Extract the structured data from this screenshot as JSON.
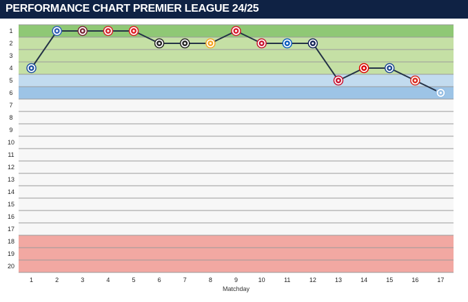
{
  "header": {
    "title": "PERFORMANCE CHART PREMIER LEAGUE 24/25"
  },
  "colors": {
    "header_bg": "#0f2244",
    "zone_top": "#8fc875",
    "zone_cl": "#c5e0a5",
    "zone_el": "#c2dbef",
    "zone_ecl": "#9dc4e6",
    "zone_mid": "#f7f7f7",
    "zone_releg": "#f2a8a2",
    "line": "#243246"
  },
  "chart_data": {
    "type": "line",
    "title": "PERFORMANCE CHART PREMIER LEAGUE 24/25",
    "xlabel": "Matchday",
    "ylabel": "",
    "x": [
      1,
      2,
      3,
      4,
      5,
      6,
      7,
      8,
      9,
      10,
      11,
      12,
      13,
      14,
      15,
      16,
      17
    ],
    "y": [
      4,
      1,
      1,
      1,
      1,
      2,
      2,
      2,
      1,
      2,
      2,
      2,
      5,
      4,
      4,
      5,
      6
    ],
    "ylim": [
      1,
      20
    ],
    "y_inverted": true,
    "y_ticks": [
      "1",
      "2",
      "3",
      "4",
      "5",
      "6",
      "7",
      "8",
      "9",
      "10",
      "11",
      "12",
      "13",
      "14",
      "15",
      "16",
      "17",
      "18",
      "19",
      "20"
    ],
    "x_ticks": [
      "1",
      "2",
      "3",
      "4",
      "5",
      "6",
      "7",
      "8",
      "9",
      "10",
      "11",
      "12",
      "13",
      "14",
      "15",
      "16",
      "17"
    ],
    "grid": true,
    "legend": "none",
    "zones": [
      {
        "from": 1,
        "to": 1,
        "color": "#8fc875"
      },
      {
        "from": 2,
        "to": 4,
        "color": "#c5e0a5"
      },
      {
        "from": 5,
        "to": 5,
        "color": "#c2dbef"
      },
      {
        "from": 6,
        "to": 6,
        "color": "#9dc4e6"
      },
      {
        "from": 7,
        "to": 17,
        "color": "#f7f7f7"
      },
      {
        "from": 18,
        "to": 20,
        "color": "#f2a8a2"
      }
    ],
    "opponent_icons": [
      {
        "matchday": 1,
        "icon": "chelsea-crest-icon",
        "color": "#1d4fa0"
      },
      {
        "matchday": 2,
        "icon": "ipswich-crest-icon",
        "color": "#2f5db8"
      },
      {
        "matchday": 3,
        "icon": "west-ham-crest-icon",
        "color": "#7a2636"
      },
      {
        "matchday": 4,
        "icon": "brentford-crest-icon",
        "color": "#d4232b"
      },
      {
        "matchday": 5,
        "icon": "arsenal-crest-icon",
        "color": "#df1b22"
      },
      {
        "matchday": 6,
        "icon": "newcastle-crest-icon",
        "color": "#222222"
      },
      {
        "matchday": 7,
        "icon": "fulham-crest-icon",
        "color": "#222222"
      },
      {
        "matchday": 8,
        "icon": "wolves-crest-icon",
        "color": "#f5a623"
      },
      {
        "matchday": 9,
        "icon": "southampton-crest-icon",
        "color": "#d7192d"
      },
      {
        "matchday": 10,
        "icon": "bournemouth-crest-icon",
        "color": "#c8102e"
      },
      {
        "matchday": 11,
        "icon": "brighton-crest-icon",
        "color": "#0a5bbd"
      },
      {
        "matchday": 12,
        "icon": "tottenham-crest-icon",
        "color": "#132257"
      },
      {
        "matchday": 13,
        "icon": "liverpool-crest-icon",
        "color": "#c8102e"
      },
      {
        "matchday": 14,
        "icon": "nottingham-forest-crest-icon",
        "color": "#dd0000"
      },
      {
        "matchday": 15,
        "icon": "crystal-palace-crest-icon",
        "color": "#1b458f"
      },
      {
        "matchday": 16,
        "icon": "manchester-united-crest-icon",
        "color": "#da291c"
      },
      {
        "matchday": 17,
        "icon": "aston-villa-crest-icon",
        "color": "#95bfe5"
      }
    ]
  }
}
